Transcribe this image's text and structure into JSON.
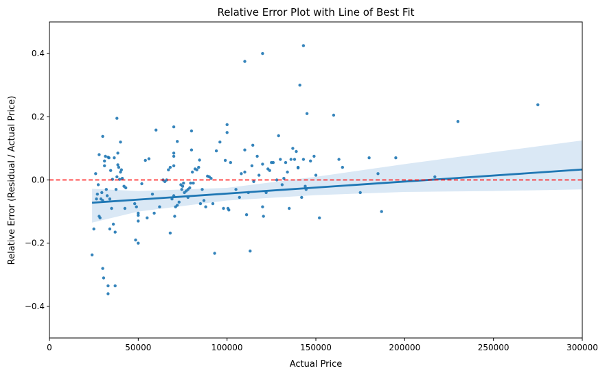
{
  "chart_data": {
    "type": "scatter",
    "title": "Relative Error Plot with Line of Best Fit",
    "xlabel": "Actual Price",
    "ylabel": "Relative Error (Residual / Actual Price)",
    "xlim": [
      0,
      300000
    ],
    "ylim": [
      -0.5,
      0.5
    ],
    "xticks": [
      0,
      50000,
      100000,
      150000,
      200000,
      250000,
      300000
    ],
    "xtick_labels": [
      "0",
      "50000",
      "100000",
      "150000",
      "200000",
      "250000",
      "300000"
    ],
    "yticks": [
      -0.4,
      -0.2,
      0.0,
      0.2,
      0.4
    ],
    "ytick_labels": [
      "−0.4",
      "−0.2",
      "0.0",
      "0.2",
      "0.4"
    ],
    "grid": false,
    "colors": {
      "points": "#1f77b4",
      "fit_line": "#1f77b4",
      "confidence_band": "#c6dbef",
      "reference_line": "#ff0000"
    },
    "reference_line": {
      "y": 0,
      "style": "dashed"
    },
    "fit_line": {
      "x": [
        24000,
        300000
      ],
      "y": [
        -0.072,
        0.033
      ]
    },
    "confidence_band": {
      "x": [
        24000,
        50000,
        100000,
        150000,
        200000,
        250000,
        300000
      ],
      "upper": [
        -0.028,
        -0.035,
        -0.025,
        0.01,
        0.05,
        0.088,
        0.125
      ],
      "lower": [
        -0.135,
        -0.1,
        -0.065,
        -0.048,
        -0.038,
        -0.035,
        -0.03
      ]
    },
    "points": [
      [
        24000,
        -0.237
      ],
      [
        25000,
        -0.155
      ],
      [
        26000,
        0.02
      ],
      [
        26500,
        -0.06
      ],
      [
        27000,
        -0.045
      ],
      [
        27500,
        -0.015
      ],
      [
        28000,
        -0.115
      ],
      [
        28500,
        -0.12
      ],
      [
        28000,
        0.08
      ],
      [
        29000,
        -0.06
      ],
      [
        29500,
        -0.04
      ],
      [
        30000,
        0.138
      ],
      [
        30000,
        -0.28
      ],
      [
        30500,
        -0.31
      ],
      [
        30000,
        -0.065
      ],
      [
        31000,
        0.045
      ],
      [
        31000,
        0.06
      ],
      [
        31500,
        0.075
      ],
      [
        32000,
        -0.03
      ],
      [
        32500,
        -0.05
      ],
      [
        33000,
        -0.36
      ],
      [
        33000,
        -0.335
      ],
      [
        33500,
        0.07
      ],
      [
        33000,
        0.072
      ],
      [
        34000,
        -0.06
      ],
      [
        34000,
        -0.155
      ],
      [
        34500,
        0.03
      ],
      [
        35000,
        -0.09
      ],
      [
        35500,
        0.002
      ],
      [
        36000,
        -0.14
      ],
      [
        36500,
        0.07
      ],
      [
        37000,
        -0.335
      ],
      [
        37000,
        -0.165
      ],
      [
        37500,
        -0.03
      ],
      [
        38000,
        0.01
      ],
      [
        38000,
        0.195
      ],
      [
        38500,
        0.085
      ],
      [
        38500,
        0.048
      ],
      [
        39000,
        0.04
      ],
      [
        39500,
        0.002
      ],
      [
        40000,
        0.12
      ],
      [
        40000,
        0.025
      ],
      [
        40500,
        0.032
      ],
      [
        41000,
        0.005
      ],
      [
        42000,
        -0.02
      ],
      [
        42500,
        -0.09
      ],
      [
        43000,
        -0.025
      ],
      [
        48000,
        -0.075
      ],
      [
        48500,
        -0.19
      ],
      [
        49000,
        -0.085
      ],
      [
        50000,
        -0.2
      ],
      [
        50000,
        -0.13
      ],
      [
        50000,
        -0.105
      ],
      [
        50000,
        -0.112
      ],
      [
        52000,
        -0.012
      ],
      [
        54000,
        0.062
      ],
      [
        55000,
        -0.12
      ],
      [
        56000,
        0.067
      ],
      [
        58000,
        -0.045
      ],
      [
        59000,
        -0.105
      ],
      [
        60000,
        0.158
      ],
      [
        62000,
        -0.085
      ],
      [
        64000,
        0.0
      ],
      [
        65000,
        -0.005
      ],
      [
        66000,
        0.0
      ],
      [
        67000,
        0.032
      ],
      [
        68000,
        -0.168
      ],
      [
        68000,
        0.04
      ],
      [
        69000,
        -0.06
      ],
      [
        70000,
        0.168
      ],
      [
        70000,
        0.085
      ],
      [
        70000,
        0.075
      ],
      [
        70000,
        0.045
      ],
      [
        70000,
        -0.05
      ],
      [
        70500,
        -0.115
      ],
      [
        71000,
        -0.085
      ],
      [
        72000,
        -0.08
      ],
      [
        72000,
        0.122
      ],
      [
        73000,
        -0.07
      ],
      [
        74000,
        -0.015
      ],
      [
        74500,
        -0.03
      ],
      [
        75000,
        -0.02
      ],
      [
        75500,
        -0.01
      ],
      [
        76000,
        -0.04
      ],
      [
        77000,
        -0.035
      ],
      [
        78000,
        -0.055
      ],
      [
        78000,
        -0.03
      ],
      [
        79000,
        -0.025
      ],
      [
        79500,
        -0.01
      ],
      [
        80000,
        0.155
      ],
      [
        80000,
        0.095
      ],
      [
        80500,
        0.025
      ],
      [
        81000,
        -0.01
      ],
      [
        82000,
        0.035
      ],
      [
        83000,
        0.032
      ],
      [
        84000,
        0.04
      ],
      [
        84500,
        0.063
      ],
      [
        85000,
        -0.075
      ],
      [
        86000,
        -0.03
      ],
      [
        87000,
        -0.065
      ],
      [
        88000,
        -0.085
      ],
      [
        89000,
        0.012
      ],
      [
        90000,
        0.01
      ],
      [
        91000,
        0.005
      ],
      [
        92000,
        -0.075
      ],
      [
        93000,
        -0.232
      ],
      [
        94000,
        0.092
      ],
      [
        96000,
        0.12
      ],
      [
        98000,
        -0.09
      ],
      [
        99000,
        0.062
      ],
      [
        100000,
        0.175
      ],
      [
        100000,
        0.15
      ],
      [
        100500,
        -0.09
      ],
      [
        101000,
        -0.095
      ],
      [
        102000,
        0.055
      ],
      [
        105000,
        -0.03
      ],
      [
        107000,
        -0.055
      ],
      [
        108000,
        0.02
      ],
      [
        110000,
        0.375
      ],
      [
        110000,
        0.095
      ],
      [
        110000,
        0.025
      ],
      [
        111000,
        -0.11
      ],
      [
        112000,
        -0.04
      ],
      [
        113000,
        -0.225
      ],
      [
        114000,
        0.045
      ],
      [
        114500,
        0.11
      ],
      [
        115000,
        -0.005
      ],
      [
        117000,
        0.075
      ],
      [
        118000,
        0.015
      ],
      [
        120000,
        0.4
      ],
      [
        120000,
        0.05
      ],
      [
        120000,
        -0.085
      ],
      [
        120500,
        -0.115
      ],
      [
        122000,
        -0.04
      ],
      [
        123000,
        0.035
      ],
      [
        124000,
        0.03
      ],
      [
        125000,
        0.055
      ],
      [
        126000,
        0.055
      ],
      [
        128000,
        0.0
      ],
      [
        129000,
        0.14
      ],
      [
        130000,
        0.065
      ],
      [
        131000,
        -0.015
      ],
      [
        132000,
        0.005
      ],
      [
        133000,
        0.055
      ],
      [
        134000,
        0.025
      ],
      [
        135000,
        -0.09
      ],
      [
        136000,
        0.065
      ],
      [
        137000,
        0.1
      ],
      [
        138000,
        0.065
      ],
      [
        139000,
        0.09
      ],
      [
        140000,
        0.038
      ],
      [
        140000,
        0.04
      ],
      [
        141000,
        0.3
      ],
      [
        142000,
        -0.055
      ],
      [
        143000,
        0.425
      ],
      [
        143000,
        0.065
      ],
      [
        144000,
        -0.02
      ],
      [
        144500,
        -0.03
      ],
      [
        145000,
        0.21
      ],
      [
        147000,
        0.06
      ],
      [
        149000,
        0.075
      ],
      [
        150000,
        0.015
      ],
      [
        152000,
        -0.12
      ],
      [
        160000,
        0.205
      ],
      [
        163000,
        0.065
      ],
      [
        165000,
        0.04
      ],
      [
        175000,
        -0.04
      ],
      [
        180000,
        0.07
      ],
      [
        185000,
        0.02
      ],
      [
        187000,
        -0.1
      ],
      [
        195000,
        0.07
      ],
      [
        217000,
        0.01
      ],
      [
        230000,
        0.185
      ],
      [
        275000,
        0.238
      ]
    ]
  }
}
